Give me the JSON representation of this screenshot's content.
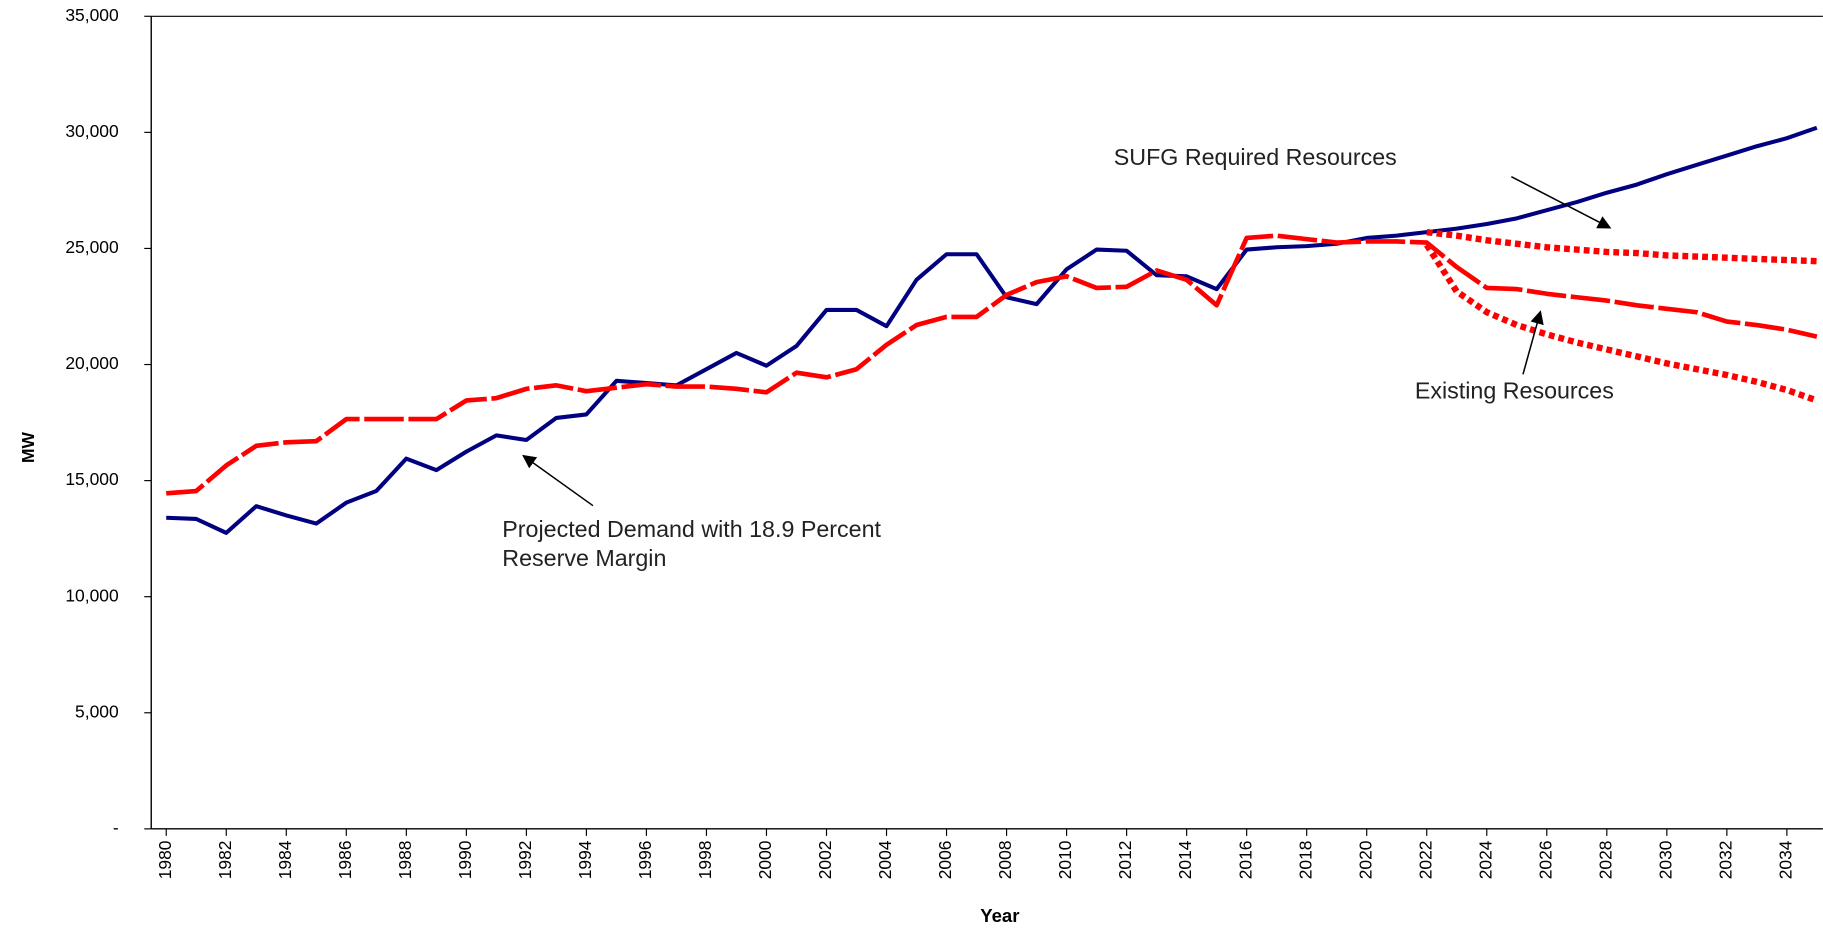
{
  "chart_data": {
    "type": "line",
    "x_label": "Year",
    "y_label": "MW",
    "annotations": [
      "SUFG Required Resources",
      "Existing Resources",
      "Projected Demand with 18.9 Percent Reserve Margin"
    ],
    "x": [
      1980,
      1981,
      1982,
      1983,
      1984,
      1985,
      1986,
      1987,
      1988,
      1989,
      1990,
      1991,
      1992,
      1993,
      1994,
      1995,
      1996,
      1997,
      1998,
      1999,
      2000,
      2001,
      2002,
      2003,
      2004,
      2005,
      2006,
      2007,
      2008,
      2009,
      2010,
      2011,
      2012,
      2013,
      2014,
      2015,
      2016,
      2017,
      2018,
      2019,
      2020,
      2021,
      2022,
      2023,
      2024,
      2025,
      2026,
      2027,
      2028,
      2029,
      2030,
      2031,
      2032,
      2033,
      2034,
      2035
    ],
    "xlim": [
      1979.5,
      2035.2
    ],
    "xticks": [
      1980,
      1982,
      1984,
      1986,
      1988,
      1990,
      1992,
      1994,
      1996,
      1998,
      2000,
      2002,
      2004,
      2006,
      2008,
      2010,
      2012,
      2014,
      2016,
      2018,
      2020,
      2022,
      2024,
      2026,
      2028,
      2030,
      2032,
      2034
    ],
    "ylim": [
      0,
      35000
    ],
    "yticks": [
      {
        "value": 0,
        "label": "-"
      },
      {
        "value": 5000,
        "label": "5,000"
      },
      {
        "value": 10000,
        "label": "10,000"
      },
      {
        "value": 15000,
        "label": "15,000"
      },
      {
        "value": 20000,
        "label": "20,000"
      },
      {
        "value": 25000,
        "label": "25,000"
      },
      {
        "value": 30000,
        "label": "30,000"
      },
      {
        "value": 35000,
        "label": "35,000"
      }
    ],
    "series": [
      {
        "color": "#000080",
        "style": "solid",
        "values": [
          13400,
          13350,
          12750,
          13900,
          13500,
          13150,
          14050,
          14550,
          15950,
          15450,
          16250,
          16950,
          16750,
          17700,
          17850,
          19300,
          19200,
          19100,
          19800,
          20500,
          19950,
          20800,
          22350,
          22350,
          21650,
          23650,
          24750,
          24750,
          22900,
          22600,
          24100,
          24950,
          24900,
          23850,
          23800,
          23250,
          24950,
          25050,
          25100,
          25200,
          25450,
          25550,
          25700,
          25850,
          26050,
          26300,
          26650,
          27000,
          27400,
          27750,
          28200,
          28600,
          29000,
          29400,
          29750,
          30200
        ]
      },
      {
        "color": "#ff0000",
        "style": "dashed",
        "values": [
          14450,
          14550,
          15650,
          16500,
          16650,
          16700,
          17650,
          17650,
          17650,
          17650,
          18450,
          18550,
          18950,
          19100,
          18850,
          19000,
          19150,
          19050,
          19050,
          18950,
          18800,
          19650,
          19450,
          19800,
          20850,
          21700,
          22050,
          22050,
          23000,
          23550,
          23800,
          23300,
          23350,
          24050,
          23650,
          22550,
          25450,
          25550,
          25400,
          25250,
          25300,
          25300,
          25250,
          24200,
          23300,
          23250,
          23050,
          22900,
          22750,
          22550,
          22400,
          22250,
          21850,
          21700,
          21500,
          21200
        ]
      },
      {
        "color": "#ff0000",
        "style": "dotted",
        "values": [
          null,
          null,
          null,
          null,
          null,
          null,
          null,
          null,
          null,
          null,
          null,
          null,
          null,
          null,
          null,
          null,
          null,
          null,
          null,
          null,
          null,
          null,
          null,
          null,
          null,
          null,
          null,
          null,
          null,
          null,
          null,
          null,
          null,
          null,
          null,
          null,
          null,
          null,
          null,
          null,
          null,
          null,
          25700,
          25550,
          25350,
          25200,
          25050,
          24950,
          24850,
          24800,
          24700,
          24650,
          24600,
          24550,
          24500,
          24450
        ]
      },
      {
        "color": "#ff0000",
        "style": "dotted",
        "values": [
          null,
          null,
          null,
          null,
          null,
          null,
          null,
          null,
          null,
          null,
          null,
          null,
          null,
          null,
          null,
          null,
          null,
          null,
          null,
          null,
          null,
          null,
          null,
          null,
          null,
          null,
          null,
          null,
          null,
          null,
          null,
          null,
          null,
          null,
          null,
          null,
          null,
          null,
          null,
          null,
          null,
          null,
          25150,
          23150,
          22250,
          21700,
          21300,
          20950,
          20650,
          20350,
          20050,
          19800,
          19550,
          19250,
          18900,
          18450
        ]
      }
    ]
  }
}
